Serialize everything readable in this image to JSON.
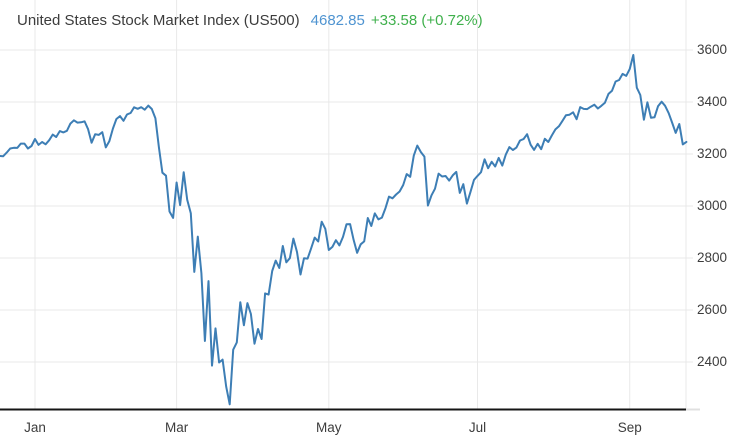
{
  "header": {
    "title": "United States Stock Market Index (US500)",
    "last_value": "4682.85",
    "change": "+33.58 (+0.72%)"
  },
  "colors": {
    "background": "#ffffff",
    "line": "#3d7eb5",
    "grid": "#e9e9e9",
    "axis": "#151515",
    "axis_stub": "#e0e0e0",
    "title_text": "#3c3c3c",
    "value_text": "#4f94d1",
    "change_text": "#3fb04c",
    "tick_text": "#3d3d3d"
  },
  "chart_data": {
    "type": "line",
    "title": "United States Stock Market Index (US500)",
    "xlabel": "",
    "ylabel": "",
    "grid": true,
    "legend": false,
    "ylim": [
      2215,
      3790
    ],
    "y_ticks": [
      3600,
      3400,
      3200,
      3000,
      2800,
      2600,
      2400
    ],
    "x_ticks": [
      {
        "label": "Jan",
        "index": 10
      },
      {
        "label": "Mar",
        "index": 50
      },
      {
        "label": "May",
        "index": 93
      },
      {
        "label": "Jul",
        "index": 135
      },
      {
        "label": "Sep",
        "index": 178
      }
    ],
    "series": [
      {
        "name": "US500",
        "values": [
          3192.52,
          3191.14,
          3205.37,
          3221.22,
          3224.01,
          3223.38,
          3239.91,
          3240.02,
          3221.29,
          3230.78,
          3257.85,
          3234.85,
          3246.28,
          3237.18,
          3253.05,
          3274.7,
          3265.35,
          3288.13,
          3283.15,
          3289.29,
          3316.81,
          3329.62,
          3320.79,
          3321.75,
          3325.54,
          3295.47,
          3243.63,
          3276.24,
          3273.4,
          3283.66,
          3225.52,
          3248.92,
          3297.59,
          3334.69,
          3345.78,
          3327.71,
          3352.09,
          3357.75,
          3379.45,
          3373.94,
          3380.16,
          3370.29,
          3386.15,
          3373.23,
          3337.75,
          3225.89,
          3128.21,
          3116.39,
          2978.76,
          2954.22,
          3090.23,
          3003.37,
          3130.12,
          3023.94,
          2972.37,
          2746.56,
          2882.23,
          2741.38,
          2480.64,
          2711.02,
          2386.13,
          2529.19,
          2398.1,
          2409.39,
          2304.92,
          2237.4,
          2447.33,
          2475.56,
          2630.07,
          2541.47,
          2626.65,
          2584.59,
          2470.5,
          2526.9,
          2488.65,
          2663.68,
          2659.41,
          2749.98,
          2789.82,
          2761.63,
          2846.06,
          2783.36,
          2799.55,
          2874.56,
          2823.16,
          2736.56,
          2799.31,
          2797.8,
          2836.74,
          2878.48,
          2863.39,
          2939.51,
          2912.43,
          2830.71,
          2842.74,
          2868.44,
          2848.42,
          2881.19,
          2929.8,
          2930.32,
          2870.12,
          2820.0,
          2852.5,
          2863.7,
          2953.91,
          2922.94,
          2971.61,
          2948.51,
          2955.45,
          2991.77,
          3036.13,
          3029.73,
          3044.31,
          3055.73,
          3080.82,
          3122.87,
          3112.35,
          3193.93,
          3232.39,
          3207.18,
          3190.14,
          3002.1,
          3041.31,
          3066.59,
          3124.74,
          3113.49,
          3115.34,
          3097.74,
          3117.86,
          3131.29,
          3050.33,
          3083.76,
          3009.05,
          3053.24,
          3100.29,
          3115.86,
          3130.01,
          3179.72,
          3145.32,
          3169.94,
          3152.05,
          3185.04,
          3155.22,
          3197.52,
          3226.56,
          3215.57,
          3224.73,
          3251.84,
          3257.3,
          3276.02,
          3235.66,
          3215.63,
          3239.41,
          3218.44,
          3258.44,
          3246.22,
          3271.12,
          3294.61,
          3306.51,
          3327.77,
          3349.16,
          3351.28,
          3360.47,
          3333.69,
          3380.35,
          3373.43,
          3372.85,
          3381.99,
          3389.78,
          3374.85,
          3385.51,
          3397.16,
          3431.28,
          3443.62,
          3478.73,
          3484.55,
          3508.01,
          3500.31,
          3526.65,
          3580.84,
          3455.06,
          3426.96,
          3331.84,
          3398.96,
          3339.19,
          3340.97,
          3383.54,
          3401.2,
          3385.49,
          3357.01,
          3319.47,
          3281.06,
          3315.57,
          3236.92,
          3246.59
        ]
      }
    ]
  }
}
